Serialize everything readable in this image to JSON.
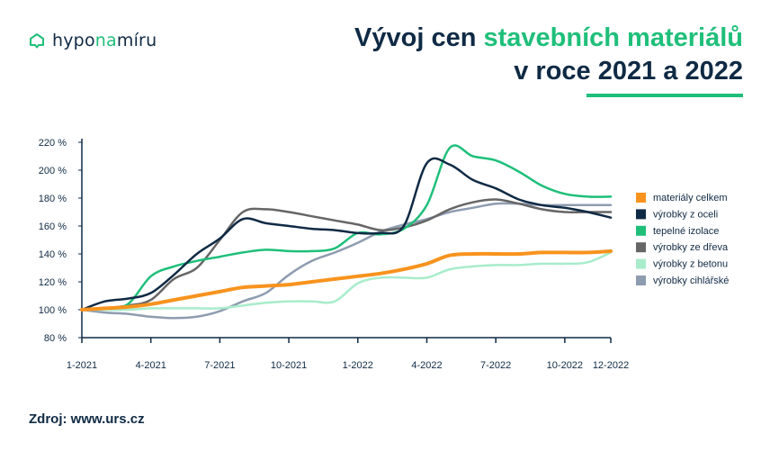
{
  "logo": {
    "part1": "hypo",
    "part2": "na",
    "part3": "míru"
  },
  "title": {
    "line1_prefix": "Vývoj cen ",
    "line1_highlight": "stavebních materiálů",
    "line2": "v roce 2021 a 2022"
  },
  "source": "Zdroj: www.urs.cz",
  "colors": {
    "accent": "#1fbf7a",
    "navy": "#0f2a44"
  },
  "chart_data": {
    "type": "line",
    "title": "Vývoj cen stavebních materiálů v roce 2021 a 2022",
    "xlabel": "",
    "ylabel": "",
    "x": [
      "1-2021",
      "2-2021",
      "3-2021",
      "4-2021",
      "5-2021",
      "6-2021",
      "7-2021",
      "8-2021",
      "9-2021",
      "10-2021",
      "11-2021",
      "12-2021",
      "1-2022",
      "2-2022",
      "3-2022",
      "4-2022",
      "5-2022",
      "6-2022",
      "7-2022",
      "8-2022",
      "9-2022",
      "10-2022",
      "11-2022",
      "12-2022"
    ],
    "x_tick_labels": [
      "1-2021",
      "4-2021",
      "7-2021",
      "10-2021",
      "1-2022",
      "4-2022",
      "7-2022",
      "10-2022",
      "12-2022"
    ],
    "x_tick_indices": [
      0,
      3,
      6,
      9,
      12,
      15,
      18,
      21,
      23
    ],
    "y_ticks": [
      80,
      100,
      120,
      140,
      160,
      180,
      200,
      220
    ],
    "y_tick_labels": [
      "80 %",
      "100 %",
      "120 %",
      "140 %",
      "160 %",
      "180 %",
      "200 %",
      "220 %"
    ],
    "ylim": [
      80,
      220
    ],
    "grid": false,
    "legend_position": "right",
    "series": [
      {
        "name": "materiály celkem",
        "color": "#f7931e",
        "values": [
          100,
          101,
          102,
          104,
          107,
          110,
          113,
          116,
          117,
          118,
          120,
          122,
          124,
          126,
          129,
          133,
          139,
          140,
          140,
          140,
          141,
          141,
          141,
          142
        ]
      },
      {
        "name": "výrobky z oceli",
        "color": "#0f2a44",
        "values": [
          100,
          106,
          108,
          112,
          125,
          140,
          151,
          165,
          162,
          160,
          158,
          157,
          155,
          155,
          160,
          205,
          204,
          193,
          187,
          179,
          175,
          173,
          170,
          166
        ]
      },
      {
        "name": "tepelné izolace",
        "color": "#1fbf7a",
        "values": [
          100,
          101,
          104,
          124,
          131,
          135,
          138,
          141,
          143,
          142,
          142,
          144,
          155,
          154,
          158,
          175,
          216,
          210,
          207,
          199,
          189,
          183,
          181,
          181
        ]
      },
      {
        "name": "výrobky ze dřeva",
        "color": "#666666",
        "values": [
          100,
          101,
          103,
          107,
          122,
          130,
          150,
          170,
          172,
          170,
          167,
          164,
          161,
          157,
          159,
          164,
          172,
          177,
          179,
          176,
          172,
          170,
          170,
          170
        ]
      },
      {
        "name": "výrobky z betonu",
        "color": "#a8eccb",
        "values": [
          100,
          100,
          100,
          101,
          101,
          101,
          101,
          103,
          105,
          106,
          106,
          106,
          119,
          123,
          123,
          123,
          129,
          131,
          132,
          132,
          133,
          133,
          134,
          141
        ]
      },
      {
        "name": "výrobky cihlářské",
        "color": "#8e9cb0",
        "values": [
          100,
          98,
          97,
          95,
          94,
          95,
          99,
          106,
          112,
          125,
          135,
          141,
          148,
          156,
          161,
          165,
          170,
          173,
          176,
          176,
          175,
          175,
          175,
          175
        ]
      }
    ]
  }
}
